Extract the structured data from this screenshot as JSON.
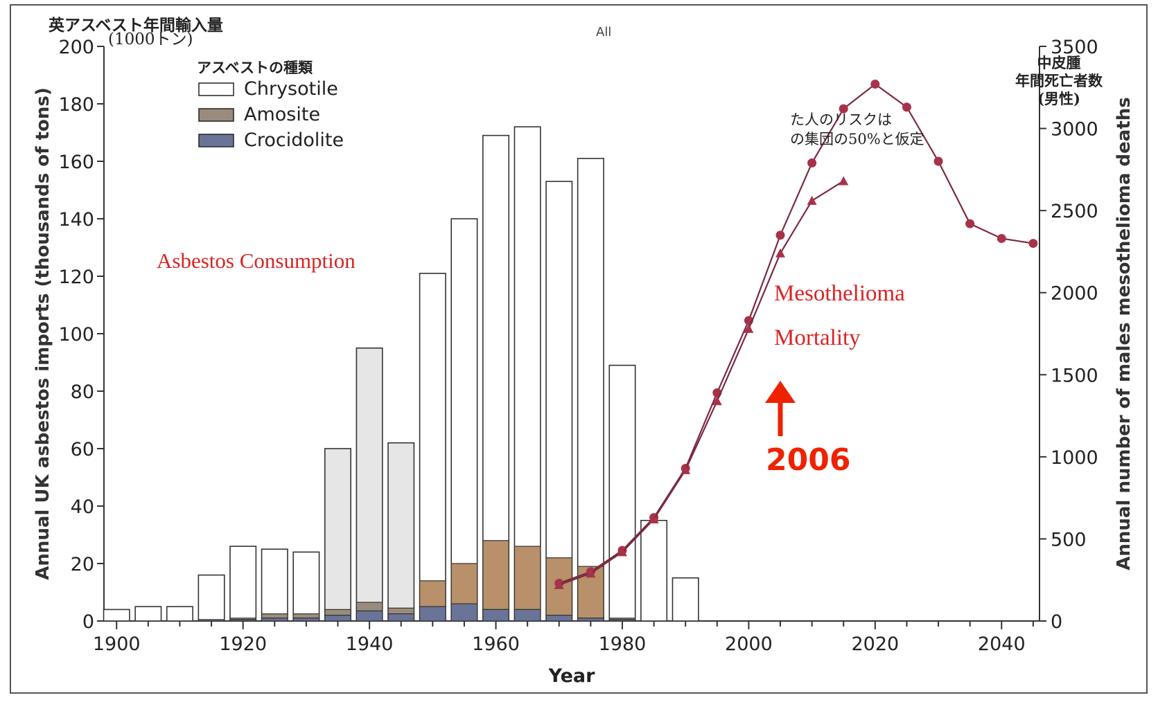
{
  "chart_data": {
    "type": "bar",
    "left_axis": {
      "label": "Annual UK asbestos imports (thousands of tons)",
      "label_jp": "英アスベスト年間輸入量",
      "unit_jp": "(1000トン)",
      "ylim": [
        0,
        200
      ],
      "ticks": [
        0,
        20,
        40,
        60,
        80,
        100,
        120,
        140,
        160,
        180,
        200
      ]
    },
    "right_axis": {
      "label": "Annual number of males mesothelioma deaths",
      "label_jp": [
        "中皮腫",
        "年間死亡者数",
        "(男性)"
      ],
      "ylim": [
        0,
        3500
      ],
      "ticks": [
        0,
        500,
        1000,
        1500,
        2000,
        2500,
        3000,
        3500
      ]
    },
    "x_axis": {
      "label": "Year",
      "xlim": [
        1898,
        2046
      ],
      "ticks": [
        1900,
        1920,
        1940,
        1960,
        1980,
        2000,
        2020,
        2040
      ]
    },
    "legend": {
      "title": "アスベストの種類",
      "position": "top-left",
      "items": [
        {
          "name": "Chrysotile",
          "color": "#ffffff"
        },
        {
          "name": "Amosite",
          "color": "#9a8c7c"
        },
        {
          "name": "Crocidolite",
          "color": "#6a7498"
        }
      ]
    },
    "bar_years": [
      1900,
      1905,
      1910,
      1915,
      1920,
      1925,
      1930,
      1935,
      1940,
      1945,
      1950,
      1955,
      1960,
      1965,
      1970,
      1975,
      1980,
      1985,
      1990
    ],
    "series": [
      {
        "name": "Chrysotile",
        "totals": [
          4,
          5,
          5,
          16,
          26,
          25,
          24,
          60,
          95,
          62,
          121,
          140,
          169,
          172,
          153,
          161,
          89,
          35,
          15
        ]
      },
      {
        "name": "Amosite",
        "values": [
          0,
          0,
          0,
          0,
          0.5,
          1.5,
          1.5,
          2,
          3,
          2,
          9,
          14,
          24,
          22,
          20,
          18,
          0.5,
          0,
          0
        ]
      },
      {
        "name": "Crocidolite",
        "values": [
          0,
          0,
          0,
          0.5,
          0.5,
          1,
          1,
          2,
          3.5,
          2.5,
          5,
          6,
          4,
          4,
          2,
          1,
          0.5,
          0,
          0
        ]
      }
    ],
    "mortality_lines": [
      {
        "x": [
          1970,
          1975,
          1980,
          1985,
          1990,
          1995,
          2000,
          2005,
          2010,
          2015,
          2020,
          2025,
          2030,
          2035,
          2040,
          2045
        ],
        "y": [
          230,
          300,
          430,
          630,
          930,
          1390,
          1830,
          2350,
          2790,
          3120,
          3270,
          3130,
          2800,
          2420,
          2330,
          2300
        ]
      },
      {
        "x": [
          1970,
          1975,
          1980,
          1985,
          1990,
          1995,
          2000,
          2005,
          2010,
          2015
        ],
        "y": [
          220,
          290,
          420,
          620,
          920,
          1340,
          1780,
          2240,
          2560,
          2680
        ]
      }
    ],
    "annotations": {
      "consumption": "Asbestos Consumption",
      "mortality_1": "Mesothelioma",
      "mortality_2": "Mortality",
      "year_marker": "2006",
      "note_1": "た人のリスクは",
      "note_2": "の集団の50%と仮定",
      "stray": "All"
    },
    "colors": {
      "annotation": "#dd2222",
      "marker": "#ee2200",
      "line": "#7a2a40",
      "points": "#a8324a",
      "axis": "#333333"
    }
  }
}
